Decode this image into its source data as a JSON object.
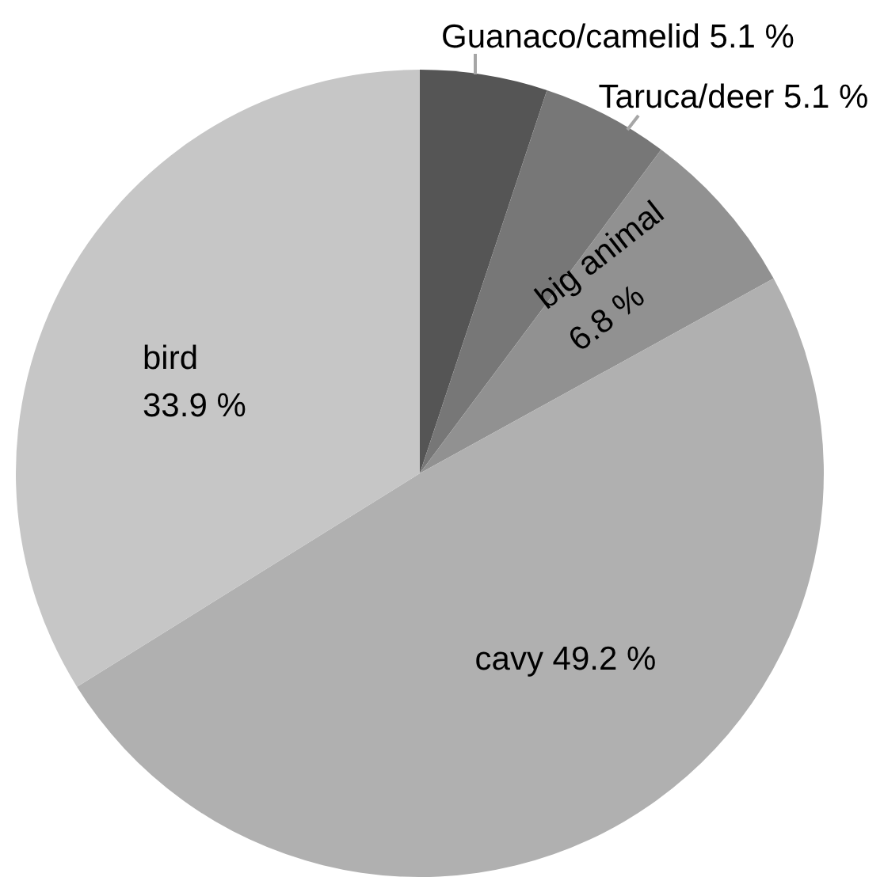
{
  "chart_data": {
    "type": "pie",
    "categories": [
      "Guanaco/camelid",
      "Taruca/deer",
      "big animal",
      "cavy",
      "bird"
    ],
    "values": [
      5.1,
      5.1,
      6.8,
      49.2,
      33.9
    ],
    "colors": [
      "#555555",
      "#777777",
      "#919191",
      "#b0b0b0",
      "#c6c6c6"
    ],
    "value_labels": [
      "5.1 %",
      "5.1 %",
      "6.8 %",
      "49.2 %",
      "33.9 %"
    ]
  }
}
